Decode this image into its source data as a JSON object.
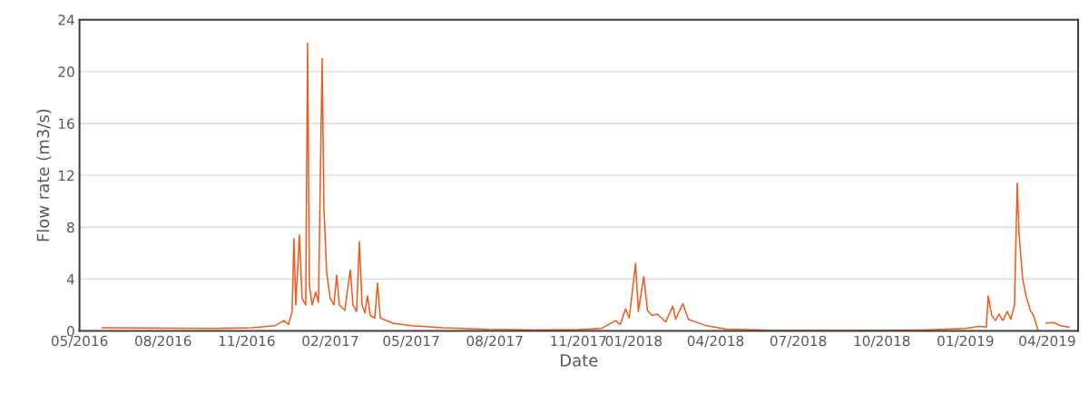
{
  "chart_data": {
    "type": "line",
    "xlabel": "Date",
    "ylabel": "Flow rate (m3/s)",
    "x": [
      "2016-05-26",
      "2016-08-09",
      "2016-09-28",
      "2016-11-07",
      "2016-12-02",
      "2016-12-12",
      "2016-12-17",
      "2016-12-21",
      "2016-12-23",
      "2016-12-25",
      "2016-12-29",
      "2017-01-01",
      "2017-01-05",
      "2017-01-07",
      "2017-01-09",
      "2017-01-12",
      "2017-01-16",
      "2017-01-19",
      "2017-01-23",
      "2017-01-25",
      "2017-01-28",
      "2017-02-01",
      "2017-02-05",
      "2017-02-08",
      "2017-02-11",
      "2017-02-17",
      "2017-02-23",
      "2017-02-26",
      "2017-03-02",
      "2017-03-05",
      "2017-03-08",
      "2017-03-11",
      "2017-03-14",
      "2017-03-17",
      "2017-03-22",
      "2017-03-25",
      "2017-03-28",
      "2017-04-11",
      "2017-05-01",
      "2017-06-05",
      "2017-07-25",
      "2017-09-13",
      "2017-11-02",
      "2017-11-27",
      "2017-12-12",
      "2017-12-17",
      "2017-12-23",
      "2017-12-27",
      "2018-01-03",
      "2018-01-06",
      "2018-01-12",
      "2018-01-16",
      "2018-01-21",
      "2018-01-27",
      "2018-02-05",
      "2018-02-13",
      "2018-02-16",
      "2018-02-24",
      "2018-03-02",
      "2018-03-22",
      "2018-04-13",
      "2018-05-31",
      "2018-08-29",
      "2018-11-17",
      "2019-01-01",
      "2019-01-16",
      "2019-01-24",
      "2019-01-26",
      "2019-01-30",
      "2019-02-03",
      "2019-02-07",
      "2019-02-11",
      "2019-02-16",
      "2019-02-20",
      "2019-02-24",
      "2019-02-27",
      "2019-03-01",
      "2019-03-05",
      "2019-03-09",
      "2019-03-14",
      "2019-03-17",
      "2019-03-20",
      "2019-03-22",
      "2019-03-27",
      "2019-03-31",
      "2019-04-08",
      "2019-04-16",
      "2019-04-25"
    ],
    "series": [
      {
        "color": "#f05a1a",
        "values": [
          0.25,
          0.22,
          0.2,
          0.25,
          0.4,
          0.8,
          0.5,
          1.5,
          7.1,
          2.0,
          7.4,
          2.5,
          2.0,
          22.2,
          3.5,
          2.0,
          3.0,
          2.2,
          21.0,
          9.5,
          4.5,
          2.5,
          2.0,
          4.3,
          2.0,
          1.6,
          4.7,
          2.0,
          1.5,
          6.9,
          2.0,
          1.4,
          2.7,
          1.2,
          1.0,
          3.7,
          1.0,
          0.6,
          0.4,
          0.25,
          0.12,
          0.08,
          0.1,
          0.2,
          0.8,
          0.5,
          1.7,
          1.0,
          5.2,
          1.5,
          4.2,
          1.6,
          1.2,
          1.3,
          0.7,
          1.9,
          0.9,
          2.1,
          0.9,
          0.4,
          0.15,
          0.05,
          0.03,
          0.08,
          0.2,
          0.35,
          0.3,
          2.7,
          1.2,
          0.8,
          1.3,
          0.8,
          1.5,
          0.9,
          2.0,
          11.4,
          7.5,
          4.0,
          2.6,
          1.5,
          1.2,
          0.5,
          0,
          null,
          0.6,
          0.65,
          0.4,
          0.3
        ]
      }
    ],
    "xlim": [
      "2016-05-01",
      "2019-05-05"
    ],
    "xticks": [
      {
        "value": "2016-05-01",
        "label": "05/2016"
      },
      {
        "value": "2016-08-01",
        "label": "08/2016"
      },
      {
        "value": "2016-11-01",
        "label": "11/2016"
      },
      {
        "value": "2017-02-01",
        "label": "02/2017"
      },
      {
        "value": "2017-05-01",
        "label": "05/2017"
      },
      {
        "value": "2017-08-01",
        "label": "08/2017"
      },
      {
        "value": "2017-11-01",
        "label": "11/2017"
      },
      {
        "value": "2018-01-01",
        "label": "01/2018"
      },
      {
        "value": "2018-04-01",
        "label": "04/2018"
      },
      {
        "value": "2018-07-01",
        "label": "07/2018"
      },
      {
        "value": "2018-10-01",
        "label": "10/2018"
      },
      {
        "value": "2019-01-01",
        "label": "01/2019"
      },
      {
        "value": "2019-04-01",
        "label": "04/2019"
      }
    ],
    "ylim": [
      0,
      24
    ],
    "yticks": [
      0,
      4,
      8,
      12,
      16,
      20,
      24
    ],
    "grid": "y",
    "marker": "none",
    "line_style": "solid"
  }
}
